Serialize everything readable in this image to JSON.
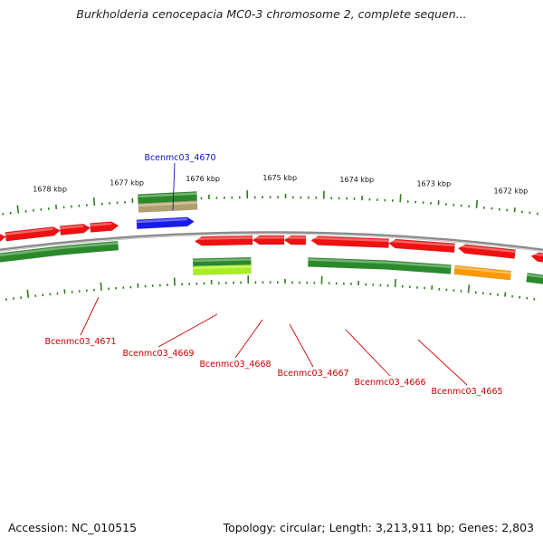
{
  "title": "Burkholderia cenocepacia MC0-3 chromosome 2, complete sequen...",
  "footer": {
    "accession": "Accession: NC_010515",
    "stats": "Topology: circular; Length: 3,213,911 bp; Genes: 2,803"
  },
  "kbp_labels": [
    "1678 kbp",
    "1677 kbp",
    "1676 kbp",
    "1675 kbp",
    "1674 kbp",
    "1673 kbp",
    "1672 kbp"
  ],
  "colors": {
    "backbone": "#8a8a8a",
    "ticks": "#2e7d1e",
    "red": "#ee1111",
    "green": "#2a8a2a",
    "blue": "#1a1aee",
    "tan": "#b0a070",
    "lime": "#aaee22",
    "orange": "#ff9900",
    "label_red": "#cc0000",
    "label_blue": "#1111cc"
  },
  "gene_labels": [
    {
      "text": "Bcenmc03_4670",
      "color": "blue"
    },
    {
      "text": "Bcenmc03_4671",
      "color": "red"
    },
    {
      "text": "Bcenmc03_4669",
      "color": "red"
    },
    {
      "text": "Bcenmc03_4668",
      "color": "red"
    },
    {
      "text": "Bcenmc03_4667",
      "color": "red"
    },
    {
      "text": "Bcenmc03_4666",
      "color": "red"
    },
    {
      "text": "Bcenmc03_4665",
      "color": "red"
    }
  ]
}
